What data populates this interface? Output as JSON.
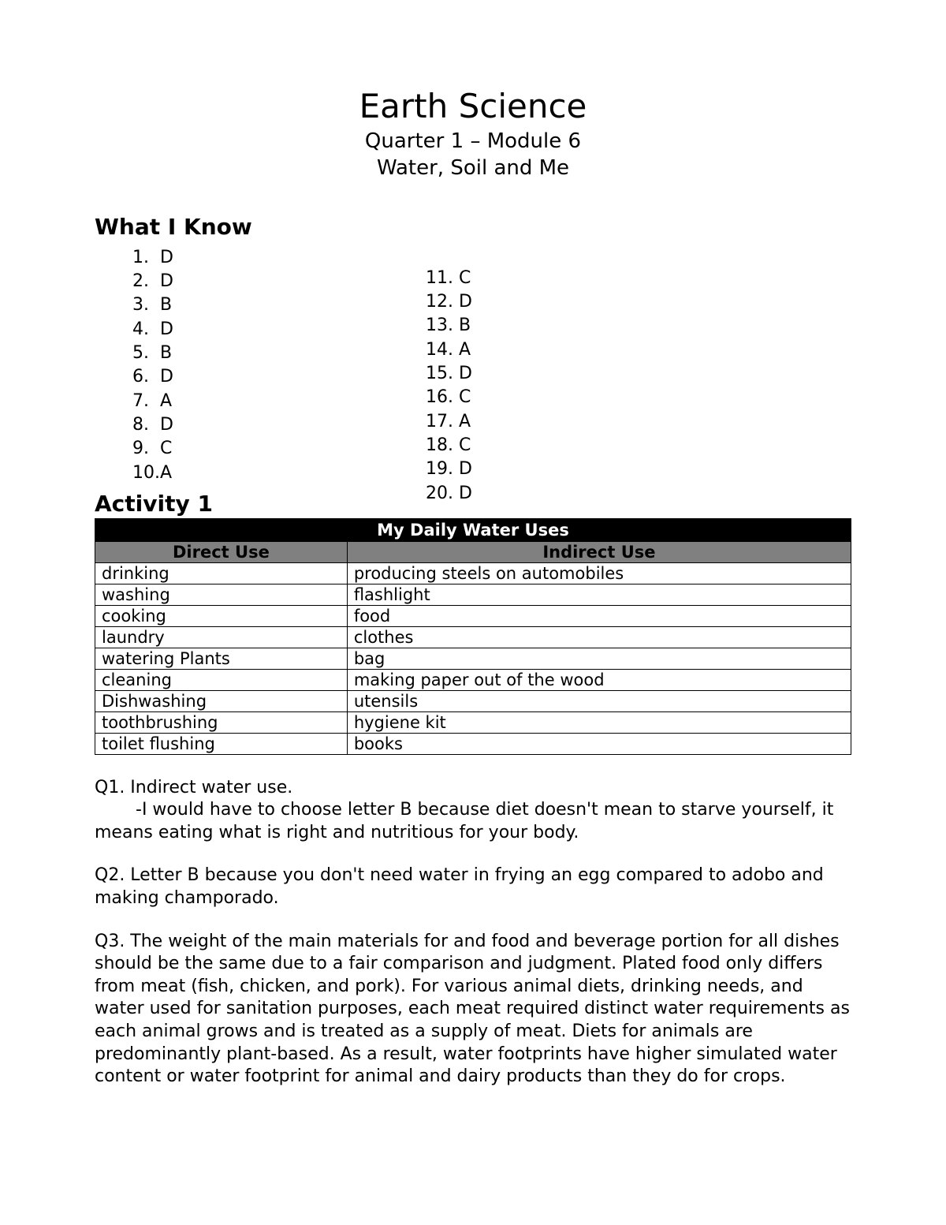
{
  "title": "Earth Science",
  "subtitle1": "Quarter 1 – Module 6",
  "subtitle2": "Water, Soil and Me",
  "sections": {
    "what_i_know": {
      "heading": "What I Know",
      "answers_left": [
        {
          "n": "1.",
          "v": "D"
        },
        {
          "n": "2.",
          "v": "D"
        },
        {
          "n": "3.",
          "v": "B"
        },
        {
          "n": "4.",
          "v": "D"
        },
        {
          "n": "5.",
          "v": "B"
        },
        {
          "n": "6.",
          "v": "D"
        },
        {
          "n": "7.",
          "v": "A"
        },
        {
          "n": "8.",
          "v": "D"
        },
        {
          "n": "9.",
          "v": "C"
        },
        {
          "n": "10.",
          "v": "A"
        }
      ],
      "answers_right": [
        {
          "n": "11.",
          "v": "C"
        },
        {
          "n": "12.",
          "v": "D"
        },
        {
          "n": "13.",
          "v": "B"
        },
        {
          "n": "14.",
          "v": "A"
        },
        {
          "n": "15.",
          "v": "D"
        },
        {
          "n": "16.",
          "v": "C"
        },
        {
          "n": "17.",
          "v": "A"
        },
        {
          "n": "18.",
          "v": "C"
        },
        {
          "n": "19.",
          "v": "D"
        },
        {
          "n": "20.",
          "v": "D"
        }
      ]
    },
    "activity1": {
      "heading": "Activity 1",
      "table": {
        "title": "My Daily Water Uses",
        "col1": "Direct Use",
        "col2": "Indirect Use",
        "rows": [
          [
            "drinking",
            "producing steels on automobiles"
          ],
          [
            "washing",
            "flashlight"
          ],
          [
            "cooking",
            "food"
          ],
          [
            "laundry",
            "clothes"
          ],
          [
            "watering Plants",
            "bag"
          ],
          [
            "cleaning",
            "making paper out of the wood"
          ],
          [
            "Dishwashing",
            "utensils"
          ],
          [
            "toothbrushing",
            "hygiene kit"
          ],
          [
            "toilet flushing",
            "books"
          ]
        ]
      }
    }
  },
  "qa": {
    "q1_line1": "Q1. Indirect water use.",
    "q1_line2": "-I would have to choose letter B because diet doesn't mean to starve yourself, it means eating what is right and nutritious for your body.",
    "q2": "Q2. Letter B because you don't need water in frying an egg compared to adobo and making champorado.",
    "q3": "Q3. The weight of the main materials for and food and beverage portion for all dishes should be the same due to a fair comparison and judgment. Plated food only differs from meat (fish, chicken, and pork). For various animal diets, drinking needs, and water used for sanitation purposes, each meat required distinct water requirements as each animal grows and is treated as a supply of meat. Diets for animals are predominantly plant-based. As a result, water footprints have higher simulated water content or water footprint for animal and dairy products than they do for crops."
  },
  "styles": {
    "background": "#ffffff",
    "text_color": "#000000",
    "table_title_bg": "#000000",
    "table_title_fg": "#ffffff",
    "table_header_bg": "#808080",
    "border_color": "#000000",
    "title_fontsize": 42,
    "subtitle_fontsize": 26,
    "heading_fontsize": 28,
    "body_fontsize": 22
  }
}
